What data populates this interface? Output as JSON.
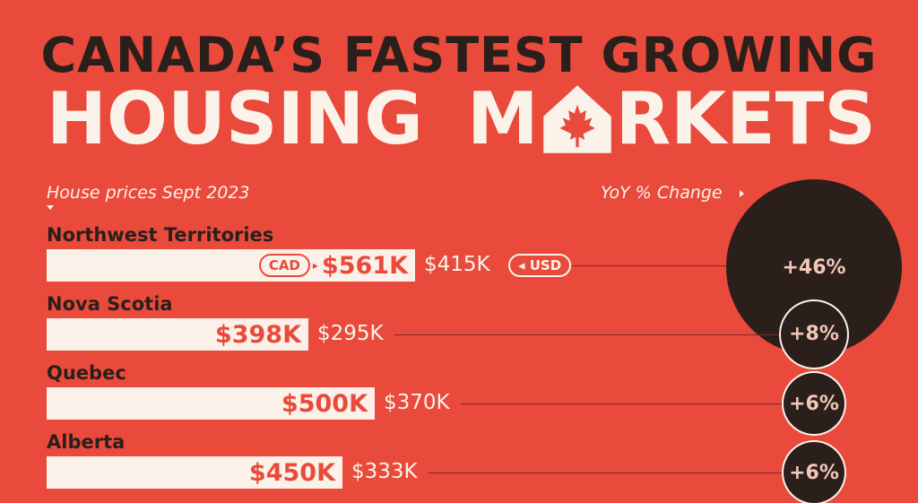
{
  "header": {
    "title_line1": "CANADA’S FASTEST GROWING",
    "title_word1": "HOUSING",
    "title_word2_start": "M",
    "title_word2_end": "RKETS",
    "house_icon": "maple-leaf-house-icon"
  },
  "labels": {
    "subtitle": "House prices Sept 2023",
    "yoy_label": "YoY % Change",
    "cad_pill": "CAD",
    "usd_pill": "USD"
  },
  "colors": {
    "background": "#e94a3b",
    "bar": "#fbf1e8",
    "circle": "#2b1f1c",
    "accent_text": "#e94a3b"
  },
  "chart_data": {
    "type": "bar",
    "categories": [
      "Northwest Territories",
      "Nova Scotia",
      "Quebec",
      "Alberta"
    ],
    "series": [
      {
        "name": "CAD",
        "values": [
          561,
          398,
          500,
          450
        ]
      },
      {
        "name": "USD",
        "values": [
          415,
          295,
          370,
          333
        ]
      },
      {
        "name": "YoY % Change",
        "values": [
          46,
          8,
          6,
          6
        ]
      }
    ],
    "cad_labels": [
      "$561K",
      "$398K",
      "$500K",
      "$450K"
    ],
    "usd_labels": [
      "$415K",
      "$295K",
      "$370K",
      "$333K"
    ],
    "change_labels": [
      "+46%",
      "+8%",
      "+6%",
      "+6%"
    ],
    "title": "CANADA’S FASTEST GROWING HOUSING MARKETS",
    "subtitle": "House prices Sept 2023"
  }
}
